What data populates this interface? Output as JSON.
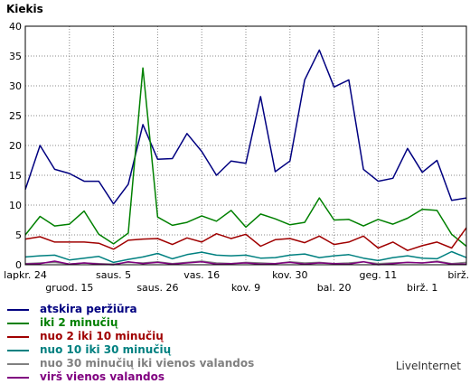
{
  "chart_data": {
    "type": "line",
    "ylabel": "Kiekis",
    "ylim": [
      0,
      40
    ],
    "yticks": [
      "0",
      "5",
      "10",
      "15",
      "20",
      "25",
      "30",
      "35",
      "40"
    ],
    "xticks_top": [
      "lapkr. 24",
      "saus. 5",
      "vas. 16",
      "kov. 30",
      "geg. 11",
      "birž. 16"
    ],
    "xticks_bottom": [
      "gruod. 15",
      "saus. 26",
      "kov. 9",
      "bal. 20",
      "birž. 1"
    ],
    "grid": true,
    "legend_placement": "bottom",
    "series": [
      {
        "name": "atskira peržiūra",
        "color": "#000080",
        "values": [
          12.6,
          20,
          16,
          15.3,
          14,
          14,
          10.2,
          13.5,
          23.5,
          17.7,
          17.8,
          22,
          19,
          15,
          17.4,
          17,
          28.2,
          15.6,
          17.4,
          31,
          36,
          29.8,
          31,
          16,
          14,
          14.5,
          19.5,
          15.5,
          17.5,
          10.8,
          11.2
        ]
      },
      {
        "name": "iki 2 minučių",
        "color": "#008000",
        "values": [
          5,
          8.1,
          6.5,
          6.8,
          9,
          5.1,
          3.5,
          5.3,
          33,
          8,
          6.6,
          7.1,
          8.2,
          7.3,
          9.1,
          6.3,
          8.5,
          7.7,
          6.7,
          7.1,
          11.2,
          7.5,
          7.6,
          6.5,
          7.6,
          6.8,
          7.8,
          9.3,
          9.1,
          5.1,
          3.1
        ]
      },
      {
        "name": "nuo 2 iki 10 minučių",
        "color": "#a00000",
        "values": [
          4.3,
          4.7,
          3.8,
          3.8,
          3.8,
          3.6,
          2.6,
          4.1,
          4.3,
          4.4,
          3.4,
          4.5,
          3.8,
          5.2,
          4.4,
          5.1,
          3.1,
          4.2,
          4.4,
          3.7,
          4.8,
          3.4,
          3.8,
          4.8,
          2.8,
          3.8,
          2.4,
          3.2,
          3.8,
          2.8,
          6.2
        ]
      },
      {
        "name": "nuo 10 iki 30 minučių",
        "color": "#008080",
        "values": [
          1.3,
          1.5,
          1.6,
          0.8,
          1.1,
          1.4,
          0.4,
          0.9,
          1.3,
          1.9,
          1.0,
          1.7,
          2.1,
          1.6,
          1.5,
          1.6,
          1.1,
          1.2,
          1.6,
          1.8,
          1.2,
          1.5,
          1.7,
          1.1,
          0.7,
          1.2,
          1.5,
          1.1,
          1.0,
          2.2,
          1.2
        ]
      },
      {
        "name": "nuo 30 minučių iki vienos valandos",
        "color": "#808080",
        "values": [
          0.2,
          0.3,
          0.4,
          0.1,
          0.3,
          0.2,
          0.1,
          0.4,
          0.3,
          0.5,
          0.2,
          0.4,
          0.6,
          0.3,
          0.2,
          0.4,
          0.3,
          0.2,
          0.5,
          0.3,
          0.4,
          0.2,
          0.3,
          0.5,
          0.2,
          0.3,
          0.4,
          0.3,
          0.6,
          0.2,
          0.4
        ]
      },
      {
        "name": "virš vienos valandos",
        "color": "#800080",
        "values": [
          0.1,
          0.2,
          0.6,
          0.1,
          0.3,
          0.1,
          0.0,
          0.5,
          0.2,
          0.4,
          0.1,
          0.3,
          0.5,
          0.1,
          0.2,
          0.3,
          0.1,
          0.2,
          0.4,
          0.1,
          0.3,
          0.2,
          0.1,
          0.5,
          0.0,
          0.2,
          0.4,
          0.3,
          0.5,
          0.1,
          0.1
        ]
      }
    ]
  },
  "legend": {
    "items": [
      {
        "label": "atskira peržiūra",
        "color": "#000080"
      },
      {
        "label": "iki 2 minučių",
        "color": "#008000"
      },
      {
        "label": "nuo 2 iki 10 minučių",
        "color": "#a00000"
      },
      {
        "label": "nuo 10 iki 30 minučių",
        "color": "#008080"
      },
      {
        "label": "nuo 30 minučių iki vienos valandos",
        "color": "#808080"
      },
      {
        "label": "virš vienos valandos",
        "color": "#800080"
      }
    ]
  },
  "brand": "LiveInternet"
}
